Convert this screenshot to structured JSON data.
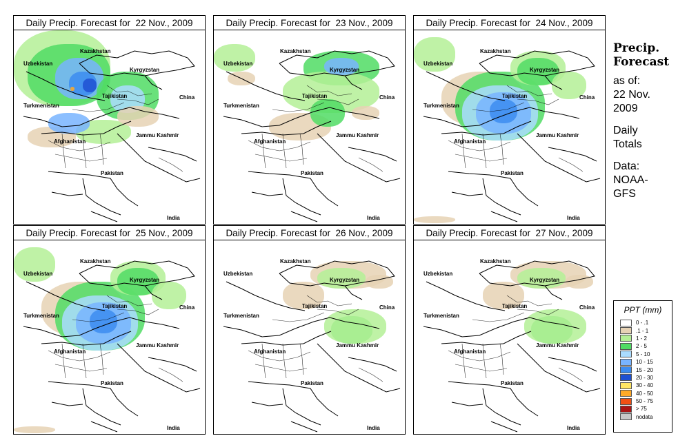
{
  "panels": [
    {
      "title": "Daily Precip. Forecast for  22 Nov., 2009",
      "intensity": "heavy-north"
    },
    {
      "title": "Daily Precip. Forecast for  23 Nov., 2009",
      "intensity": "light"
    },
    {
      "title": "Daily Precip. Forecast for  24 Nov., 2009",
      "intensity": "heavy-center"
    },
    {
      "title": "Daily Precip. Forecast for  25 Nov., 2009",
      "intensity": "heavy-center"
    },
    {
      "title": "Daily Precip. Forecast for  26 Nov., 2009",
      "intensity": "very-light"
    },
    {
      "title": "Daily Precip. Forecast for  27 Nov., 2009",
      "intensity": "very-light"
    }
  ],
  "map_labels": {
    "kazakhstan": "Kazakhstan",
    "uzbekistan": "Uzbekistan",
    "kyrgyzstan": "Kyrgyzstan",
    "tajikistan": "Tajikistan",
    "turkmenistan": "Turkmenistan",
    "china": "China",
    "afghanistan": "Afghanistan",
    "jammu_kashmir": "Jammu Kashmir",
    "pakistan": "Pakistan",
    "india": "India"
  },
  "sidebar": {
    "title_line1": "Precip.",
    "title_line2": "Forecast",
    "asof_line1": "as of:",
    "asof_line2": "22 Nov.",
    "asof_line3": "2009",
    "totals_line1": "Daily",
    "totals_line2": "Totals",
    "data_line1": "Data:",
    "data_line2": "NOAA-",
    "data_line3": "GFS"
  },
  "legend": {
    "title": "PPT (mm)",
    "items": [
      {
        "label": "0 - .1",
        "color": "#ffffff"
      },
      {
        "label": ".1 - 1",
        "color": "#e6d2b4"
      },
      {
        "label": "1 - 2",
        "color": "#b4f096"
      },
      {
        "label": "2 - 5",
        "color": "#50dc64"
      },
      {
        "label": "5 - 10",
        "color": "#aadcff"
      },
      {
        "label": "10 - 15",
        "color": "#78b4ff"
      },
      {
        "label": "15 - 20",
        "color": "#3c8cf0"
      },
      {
        "label": "20 - 30",
        "color": "#1e50d2"
      },
      {
        "label": "30 - 40",
        "color": "#ffe664"
      },
      {
        "label": "40 - 50",
        "color": "#ffaa28"
      },
      {
        "label": "50 - 75",
        "color": "#f05014"
      },
      {
        "label": "> 75",
        "color": "#aa1414"
      },
      {
        "label": "nodata",
        "color": "#c8c8c8"
      }
    ]
  }
}
